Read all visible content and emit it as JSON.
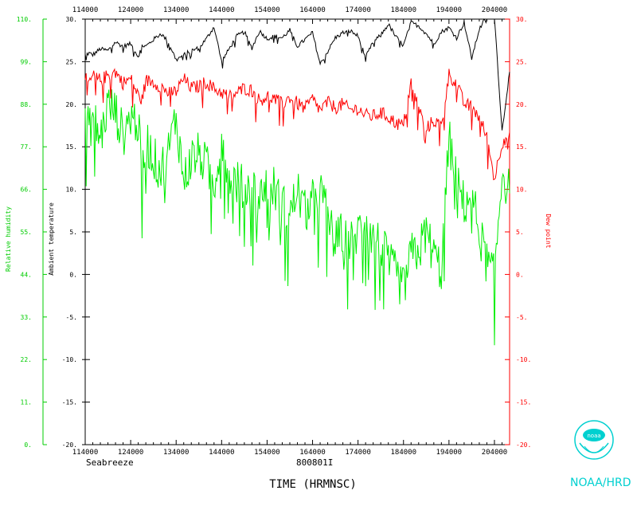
{
  "chart_data": {
    "type": "line",
    "xlabel": "TIME (HRMNSC)",
    "station_label": "Seabreeze",
    "flight_id": "800801I",
    "left_inner_axis_label": "Ambient temperature",
    "left_outer_axis_label": "Relative humidity",
    "right_axis_label": "Dew point",
    "x_ticks": [
      "114000",
      "124000",
      "134000",
      "144000",
      "154000",
      "164000",
      "174000",
      "184000",
      "194000",
      "204000"
    ],
    "temp_ticks": [
      "30.",
      "25.",
      "20.",
      "15.",
      "10.",
      "5.",
      "0.",
      "-5.",
      "-10.",
      "-15.",
      "-20."
    ],
    "dewpoint_ticks": [
      "30.",
      "25.",
      "20.",
      "15.",
      "10.",
      "5.",
      "0.",
      "-5.",
      "-10.",
      "-15.",
      "-20."
    ],
    "rh_ticks": [
      "110.",
      "99.",
      "88.",
      "77.",
      "66.",
      "55.",
      "44.",
      "33.",
      "22.",
      "11.",
      "0."
    ],
    "temp_range": [
      -20,
      30
    ],
    "rh_range": [
      0,
      110
    ],
    "grid": false,
    "series": [
      {
        "name": "Ambient temperature",
        "color": "#000000",
        "axis": "temp",
        "x": [
          114000,
          114500,
          115000,
          120000,
          121000,
          122000,
          123000,
          124000,
          125000,
          125500,
          130000,
          131000,
          132000,
          133000,
          134000,
          135000,
          140000,
          141000,
          142000,
          143000,
          144000,
          145000,
          150000,
          151000,
          152000,
          153000,
          154000,
          155000,
          160000,
          161000,
          162000,
          163000,
          164000,
          165000,
          170000,
          171000,
          172000,
          173000,
          174000,
          175000,
          180000,
          181000,
          182000,
          183000,
          184000,
          185000,
          190000,
          191000,
          192000,
          193000,
          194000,
          195000,
          200000,
          201000,
          202000,
          203000,
          204000,
          205000,
          210000
        ],
        "y": [
          25.8,
          26.0,
          25.8,
          26.5,
          26.3,
          27.3,
          26.8,
          27.1,
          25.6,
          26.9,
          26.8,
          27.6,
          28.3,
          27.3,
          25.2,
          25.8,
          26.3,
          26.6,
          27.7,
          29.1,
          25.0,
          26.5,
          28.0,
          28.5,
          26.6,
          28.6,
          27.7,
          28.0,
          27.8,
          28.7,
          26.8,
          27.6,
          28.4,
          24.7,
          26.2,
          27.8,
          28.4,
          28.6,
          28.0,
          25.5,
          27.3,
          28.1,
          29.4,
          27.9,
          26.9,
          29.6,
          29.2,
          28.3,
          27.1,
          28.5,
          29.0,
          27.8,
          29.6,
          25.4,
          28.8,
          30.4,
          30.5,
          16.8,
          23.8
        ]
      },
      {
        "name": "Dew point",
        "color": "#ff0000",
        "axis": "temp",
        "x": [
          114000,
          114500,
          115000,
          120000,
          121000,
          122000,
          123000,
          124000,
          125000,
          125500,
          130000,
          131000,
          132000,
          133000,
          134000,
          135000,
          140000,
          141000,
          142000,
          143000,
          144000,
          145000,
          150000,
          151000,
          152000,
          153000,
          154000,
          155000,
          160000,
          161000,
          162000,
          163000,
          164000,
          165000,
          170000,
          171000,
          172000,
          173000,
          174000,
          175000,
          180000,
          181000,
          182000,
          183000,
          184000,
          185000,
          190000,
          191000,
          192000,
          193000,
          194000,
          195000,
          200000,
          201000,
          202000,
          203000,
          204000,
          205000,
          210000
        ],
        "y": [
          23.0,
          22.4,
          23.3,
          22.8,
          23.4,
          23.8,
          22.5,
          23.0,
          21.0,
          20.5,
          22.8,
          22.6,
          22.1,
          21.3,
          21.5,
          23.0,
          21.9,
          22.1,
          22.6,
          21.8,
          21.4,
          20.9,
          21.3,
          21.9,
          21.6,
          20.4,
          21.0,
          20.6,
          20.0,
          20.8,
          20.1,
          19.5,
          20.6,
          19.3,
          20.2,
          19.6,
          20.0,
          19.3,
          19.5,
          18.7,
          18.6,
          19.0,
          18.5,
          17.8,
          17.5,
          22.6,
          19.5,
          17.1,
          18.1,
          17.4,
          23.5,
          22.4,
          20.0,
          19.7,
          18.5,
          16.1,
          11.2,
          15.5,
          16.7
        ]
      },
      {
        "name": "Relative humidity",
        "color": "#00ee00",
        "axis": "rh",
        "x": [
          114000,
          114500,
          115000,
          120000,
          121000,
          122000,
          123000,
          124000,
          125000,
          125500,
          130000,
          131000,
          132000,
          133000,
          134000,
          135000,
          140000,
          141000,
          142000,
          143000,
          144000,
          145000,
          150000,
          151000,
          152000,
          153000,
          154000,
          155000,
          160000,
          161000,
          162000,
          163000,
          164000,
          165000,
          170000,
          171000,
          172000,
          173000,
          174000,
          175000,
          180000,
          181000,
          182000,
          183000,
          184000,
          185000,
          190000,
          191000,
          192000,
          193000,
          194000,
          195000,
          200000,
          201000,
          202000,
          203000,
          204000,
          205000,
          210000
        ],
        "y": [
          84.0,
          81.0,
          85.0,
          79.0,
          88.0,
          86.0,
          80.0,
          85.0,
          83.0,
          69.0,
          79.0,
          74.0,
          71.0,
          76.0,
          85.0,
          68.0,
          74.0,
          75.0,
          72.0,
          67.0,
          80.0,
          70.0,
          68.0,
          66.0,
          67.0,
          63.0,
          69.0,
          66.0,
          62.0,
          59.0,
          66.0,
          60.0,
          63.0,
          66.0,
          59.0,
          52.0,
          55.0,
          52.0,
          55.0,
          60.0,
          53.0,
          52.0,
          47.0,
          44.0,
          40.0,
          49.0,
          50.0,
          55.0,
          49.0,
          45.0,
          79.0,
          69.0,
          62.0,
          65.0,
          55.0,
          47.0,
          43.0,
          71.0,
          65.0
        ]
      }
    ]
  },
  "branding": {
    "logo_text": "noaa",
    "org_label": "NOAA/HRD"
  }
}
